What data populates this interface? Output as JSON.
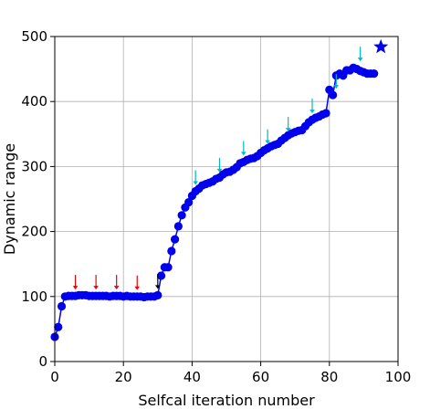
{
  "chart_data": {
    "type": "line",
    "title": "",
    "xlabel": "Selfcal iteration number",
    "ylabel": "Dynamic range",
    "xlim": [
      0,
      100
    ],
    "ylim": [
      0,
      500
    ],
    "xticks": [
      0,
      20,
      40,
      60,
      80,
      100
    ],
    "yticks": [
      0,
      100,
      200,
      300,
      400,
      500
    ],
    "grid": true,
    "series": [
      {
        "color": "#0000ee",
        "marker": "circle",
        "x": [
          0,
          1,
          2,
          3,
          4,
          5,
          6,
          7,
          8,
          9,
          10,
          11,
          12,
          13,
          14,
          15,
          16,
          17,
          18,
          19,
          20,
          21,
          22,
          23,
          24,
          25,
          26,
          27,
          28,
          29,
          30,
          31,
          32,
          33,
          34,
          35,
          36,
          37,
          38,
          39,
          40,
          41,
          42,
          43,
          44,
          45,
          46,
          47,
          48,
          49,
          50,
          51,
          52,
          53,
          54,
          55,
          56,
          57,
          58,
          59,
          60,
          61,
          62,
          63,
          64,
          65,
          66,
          67,
          68,
          69,
          70,
          71,
          72,
          73,
          74,
          75,
          76,
          77,
          78,
          79,
          80,
          81,
          82,
          83,
          84,
          85,
          86,
          87,
          88,
          89,
          90,
          91,
          92,
          93
        ],
        "y": [
          38,
          53,
          85,
          100,
          101,
          101,
          101,
          102,
          102,
          102,
          101,
          101,
          101,
          101,
          101,
          101,
          100,
          101,
          101,
          101,
          100,
          101,
          100,
          100,
          100,
          100,
          99,
          100,
          100,
          100,
          102,
          132,
          145,
          145,
          170,
          188,
          208,
          225,
          237,
          245,
          255,
          262,
          266,
          271,
          273,
          275,
          277,
          281,
          283,
          288,
          291,
          292,
          295,
          299,
          305,
          307,
          310,
          312,
          313,
          316,
          321,
          325,
          328,
          331,
          333,
          335,
          340,
          344,
          348,
          351,
          353,
          355,
          356,
          362,
          368,
          372,
          375,
          377,
          380,
          382,
          418,
          410,
          440,
          443,
          440,
          448,
          448,
          452,
          450,
          447,
          445,
          443,
          443,
          443
        ]
      }
    ],
    "highlight_point": {
      "x": 95,
      "y": 484,
      "marker": "star",
      "color": "#0000ee"
    },
    "annotations": [
      {
        "type": "arrow",
        "x": 6,
        "y": 101,
        "color": "#ee0000"
      },
      {
        "type": "arrow",
        "x": 12,
        "y": 101,
        "color": "#ee0000"
      },
      {
        "type": "arrow",
        "x": 18,
        "y": 101,
        "color": "#ee0000"
      },
      {
        "type": "arrow",
        "x": 24,
        "y": 100,
        "color": "#ee0000"
      },
      {
        "type": "arrow",
        "x": 30,
        "y": 102,
        "color": "#000000"
      },
      {
        "type": "arrow",
        "x": 41,
        "y": 262,
        "color": "#00b8c8"
      },
      {
        "type": "arrow",
        "x": 48,
        "y": 281,
        "color": "#00b8c8"
      },
      {
        "type": "arrow",
        "x": 55,
        "y": 307,
        "color": "#00b8c8"
      },
      {
        "type": "arrow",
        "x": 62,
        "y": 325,
        "color": "#00b8c8"
      },
      {
        "type": "arrow",
        "x": 68,
        "y": 344,
        "color": "#00b8c8"
      },
      {
        "type": "arrow",
        "x": 75,
        "y": 372,
        "color": "#00b8c8"
      },
      {
        "type": "arrow",
        "x": 82,
        "y": 410,
        "color": "#00b8c8"
      },
      {
        "type": "arrow",
        "x": 89,
        "y": 452,
        "color": "#00b8c8"
      }
    ]
  }
}
